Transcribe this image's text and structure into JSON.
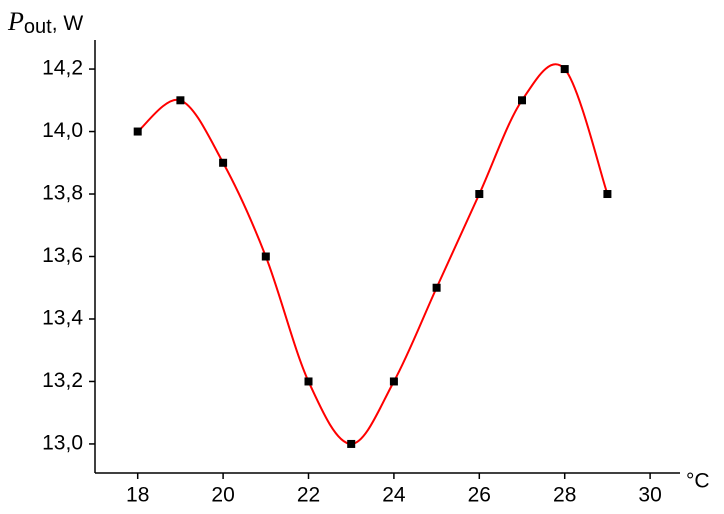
{
  "chart_data": {
    "type": "scatter",
    "y_label": "P",
    "y_label_sub": "out",
    "y_label_unit": ", W",
    "x_label": "°C",
    "x": [
      18,
      19,
      20,
      21,
      22,
      23,
      24,
      25,
      26,
      27,
      28,
      29
    ],
    "values": [
      14.0,
      14.1,
      13.9,
      13.6,
      13.2,
      13.0,
      13.2,
      13.5,
      13.8,
      14.1,
      14.2,
      13.8
    ],
    "color": "#000000",
    "line_color": "#ff0000",
    "xlim": [
      17,
      30.7
    ],
    "xticks": [
      18,
      20,
      22,
      24,
      26,
      28,
      30
    ],
    "ylim": [
      12.907,
      14.293
    ],
    "yticks": [
      {
        "value": 13.0,
        "label": "13,0"
      },
      {
        "value": 13.2,
        "label": "13,2"
      },
      {
        "value": 13.4,
        "label": "13,4"
      },
      {
        "value": 13.6,
        "label": "13,6"
      },
      {
        "value": 13.8,
        "label": "13,8"
      },
      {
        "value": 14.0,
        "label": "14,0"
      },
      {
        "value": 14.2,
        "label": "14,2"
      }
    ]
  }
}
